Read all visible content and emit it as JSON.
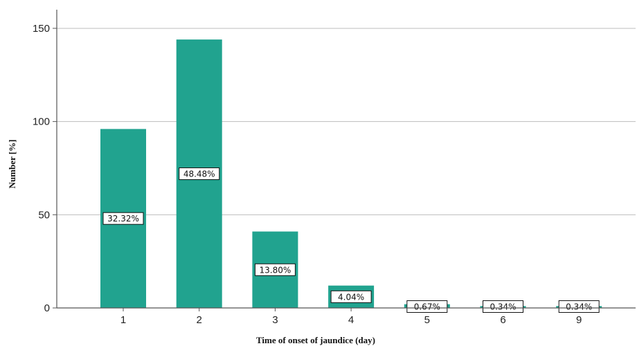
{
  "chart_data": {
    "type": "bar",
    "categories": [
      "1",
      "2",
      "3",
      "4",
      "5",
      "6",
      "9"
    ],
    "values": [
      96,
      144,
      41,
      12,
      2,
      1,
      1
    ],
    "data_labels": [
      "32.32%",
      "48.48%",
      "13.80%",
      "4.04%",
      "0.67%",
      "0.34%",
      "0.34%"
    ],
    "xlabel": "Time of onset of jaundice (day)",
    "ylabel": "Number [%]",
    "ylim": [
      0,
      160
    ],
    "yticks": [
      0,
      50,
      100,
      150
    ],
    "grid": true,
    "legend": "none",
    "colors": {
      "bar": "#21a38f",
      "grid": "#bdbdbd",
      "axis": "#555555"
    }
  }
}
